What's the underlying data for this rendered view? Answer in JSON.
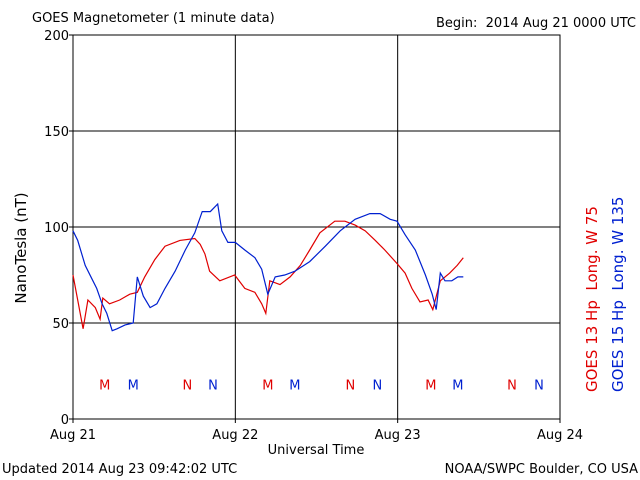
{
  "chart_data": {
    "type": "line",
    "title": "GOES Magnetometer (1 minute data)",
    "subtitle": "Begin:  2014 Aug 21 0000 UTC",
    "ylabel": "NanoTesla (nT)",
    "xlabel": "Universal Time",
    "footer_left": "Updated 2014 Aug 23 09:42:02 UTC",
    "footer_right": "NOAA/SWPC Boulder, CO USA",
    "xlim": [
      0,
      72
    ],
    "xticks": [
      {
        "value": 0,
        "label": "Aug 21"
      },
      {
        "value": 24,
        "label": "Aug 22"
      },
      {
        "value": 48,
        "label": "Aug 23"
      },
      {
        "value": 72,
        "label": "Aug 24"
      }
    ],
    "ylim": [
      0,
      200
    ],
    "yticks": [
      0,
      50,
      100,
      150,
      200
    ],
    "grid": true,
    "series": [
      {
        "name": "GOES 13 Hp  Long. W 75",
        "color": "#e00000",
        "x": [
          0,
          0.7,
          1.5,
          2.2,
          3.3,
          4.0,
          4.4,
          5.4,
          6.9,
          8.4,
          9.5,
          10.6,
          12.1,
          13.6,
          15.8,
          18.0,
          18.8,
          19.5,
          20.2,
          21.7,
          23.9,
          25.4,
          26.9,
          27.9,
          28.5,
          29.1,
          30.6,
          32.1,
          33.6,
          35.0,
          36.5,
          38.7,
          40.2,
          41.7,
          43.2,
          44.7,
          46.1,
          47.9,
          49.1,
          50.1,
          51.3,
          52.5,
          53.2,
          54.3,
          55.7,
          56.8,
          57.7
        ],
        "values": [
          75,
          62,
          47,
          62,
          58,
          52,
          63,
          60,
          62,
          65,
          66,
          74,
          83,
          90,
          93,
          94,
          91,
          86,
          77,
          72,
          75,
          68,
          66,
          60,
          55,
          72,
          70,
          74,
          80,
          88,
          97,
          103,
          103,
          101,
          98,
          93,
          88,
          81,
          76,
          68,
          61,
          62,
          57,
          72,
          76,
          80,
          84
        ]
      },
      {
        "name": "GOES 15 Hp  Long. W 135",
        "color": "#0020d0",
        "x": [
          0,
          0.7,
          1.8,
          2.8,
          3.5,
          4.3,
          5.0,
          5.8,
          6.5,
          7.7,
          8.9,
          9.5,
          10.4,
          11.4,
          12.4,
          13.6,
          15.1,
          16.6,
          18.0,
          19.1,
          20.3,
          21.4,
          22.0,
          22.9,
          24.0,
          25.4,
          26.9,
          27.9,
          28.8,
          29.9,
          31.3,
          32.8,
          35.0,
          37.3,
          39.5,
          41.7,
          43.9,
          45.4,
          46.9,
          47.9,
          49.1,
          50.6,
          52.1,
          53.1,
          53.7,
          54.3,
          55.0,
          56.0,
          56.9,
          57.7
        ],
        "values": [
          98,
          93,
          80,
          73,
          68,
          60,
          55,
          46,
          47,
          49,
          50,
          74,
          64,
          58,
          60,
          68,
          77,
          88,
          97,
          108,
          108,
          112,
          98,
          92,
          92,
          88,
          84,
          78,
          65,
          74,
          75,
          77,
          82,
          90,
          98,
          104,
          107,
          107,
          104,
          103,
          96,
          88,
          75,
          65,
          57,
          76,
          72,
          72,
          74,
          74
        ]
      }
    ],
    "annotations": [
      {
        "text": "M",
        "x": 4.7,
        "y": 18,
        "color": "#e00000"
      },
      {
        "text": "N",
        "x": 16.9,
        "y": 18,
        "color": "#e00000"
      },
      {
        "text": "M",
        "x": 28.8,
        "y": 18,
        "color": "#e00000"
      },
      {
        "text": "N",
        "x": 41.0,
        "y": 18,
        "color": "#e00000"
      },
      {
        "text": "M",
        "x": 52.9,
        "y": 18,
        "color": "#e00000"
      },
      {
        "text": "N",
        "x": 64.9,
        "y": 18,
        "color": "#e00000"
      },
      {
        "text": "M",
        "x": 8.9,
        "y": 18,
        "color": "#0020d0"
      },
      {
        "text": "N",
        "x": 20.7,
        "y": 18,
        "color": "#0020d0"
      },
      {
        "text": "M",
        "x": 32.8,
        "y": 18,
        "color": "#0020d0"
      },
      {
        "text": "N",
        "x": 45.0,
        "y": 18,
        "color": "#0020d0"
      },
      {
        "text": "M",
        "x": 56.9,
        "y": 18,
        "color": "#0020d0"
      },
      {
        "text": "N",
        "x": 68.9,
        "y": 18,
        "color": "#0020d0"
      }
    ]
  }
}
